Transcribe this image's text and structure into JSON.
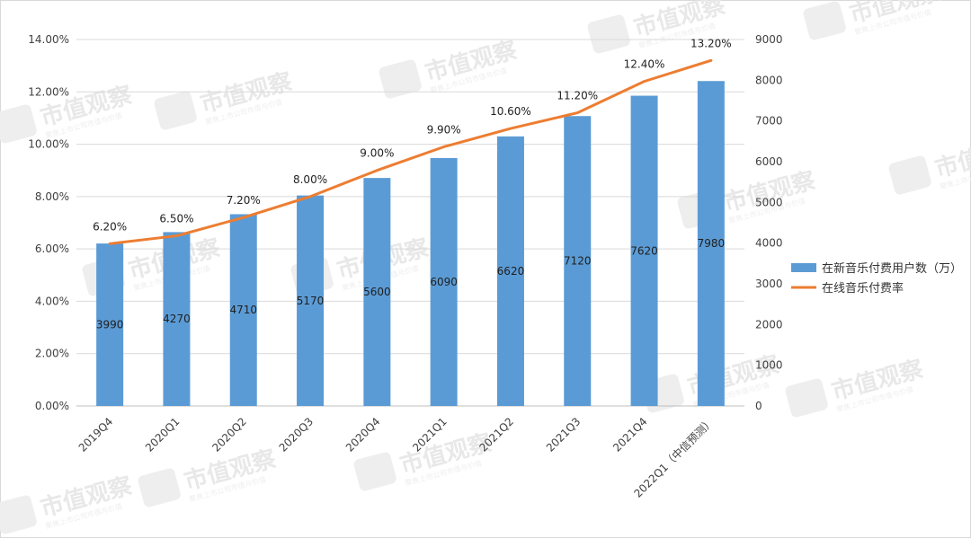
{
  "chart_data": {
    "type": "bar+line",
    "categories": [
      "2019Q4",
      "2020Q1",
      "2020Q2",
      "2020Q3",
      "2020Q4",
      "2021Q1",
      "2021Q2",
      "2021Q3",
      "2021Q4",
      "2022Q1（中信预测）"
    ],
    "bar_series": {
      "name": "在新音乐付费用户数（万）",
      "values": [
        3990,
        4270,
        4710,
        5170,
        5600,
        6090,
        6620,
        7120,
        7620,
        7980
      ],
      "color": "#5b9bd5",
      "axis": "right"
    },
    "line_series": {
      "name": "在线音乐付费率",
      "values": [
        6.2,
        6.5,
        7.2,
        8.0,
        9.0,
        9.9,
        10.6,
        11.2,
        12.4,
        13.2
      ],
      "labels": [
        "6.20%",
        "6.50%",
        "7.20%",
        "8.00%",
        "9.00%",
        "9.90%",
        "10.60%",
        "11.20%",
        "12.40%",
        "13.20%"
      ],
      "color": "#ed7d31",
      "axis": "left"
    },
    "left_axis": {
      "ylim": [
        0,
        14
      ],
      "ticks": [
        "0.00%",
        "2.00%",
        "4.00%",
        "6.00%",
        "8.00%",
        "10.00%",
        "12.00%",
        "14.00%"
      ]
    },
    "right_axis": {
      "ylim": [
        0,
        9000
      ],
      "ticks": [
        "0",
        "1000",
        "2000",
        "3000",
        "4000",
        "5000",
        "6000",
        "7000",
        "8000",
        "9000"
      ]
    },
    "grid": true,
    "legend_position": "right"
  },
  "watermark": {
    "title": "市值观察",
    "subtitle": "聚焦上市公司市值与价值"
  }
}
